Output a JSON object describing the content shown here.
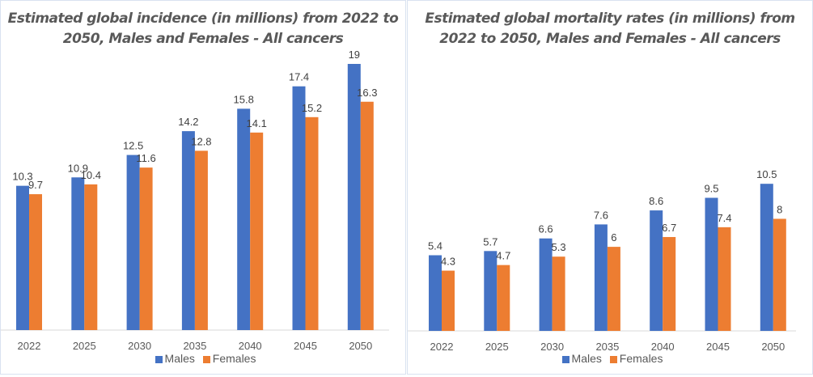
{
  "chart_data": [
    {
      "type": "bar",
      "title": "Estimated global incidence (in millions) from 2022 to 2050, Males and Females - All cancers",
      "categories": [
        "2022",
        "2025",
        "2030",
        "2035",
        "2040",
        "2045",
        "2050"
      ],
      "series": [
        {
          "name": "Males",
          "values": [
            10.3,
            10.9,
            12.5,
            14.2,
            15.8,
            17.4,
            19
          ],
          "color": "#4472C4"
        },
        {
          "name": "Females",
          "values": [
            9.7,
            10.4,
            11.6,
            12.8,
            14.1,
            15.2,
            16.3
          ],
          "color": "#ED7D31"
        }
      ],
      "xlabel": "",
      "ylabel": "",
      "ylim": [
        0,
        19.5
      ],
      "grid": false,
      "legend": "bottom"
    },
    {
      "type": "bar",
      "title": "Estimated global mortality rates (in millions) from 2022 to 2050, Males and Females - All cancers",
      "categories": [
        "2022",
        "2025",
        "2030",
        "2035",
        "2040",
        "2045",
        "2050"
      ],
      "series": [
        {
          "name": "Males",
          "values": [
            5.4,
            5.7,
            6.6,
            7.6,
            8.6,
            9.5,
            10.5
          ],
          "color": "#4472C4"
        },
        {
          "name": "Females",
          "values": [
            4.3,
            4.7,
            5.3,
            6,
            6.7,
            7.4,
            8
          ],
          "color": "#ED7D31"
        }
      ],
      "xlabel": "",
      "ylabel": "",
      "ylim": [
        0,
        19.5
      ],
      "grid": false,
      "legend": "bottom"
    }
  ]
}
